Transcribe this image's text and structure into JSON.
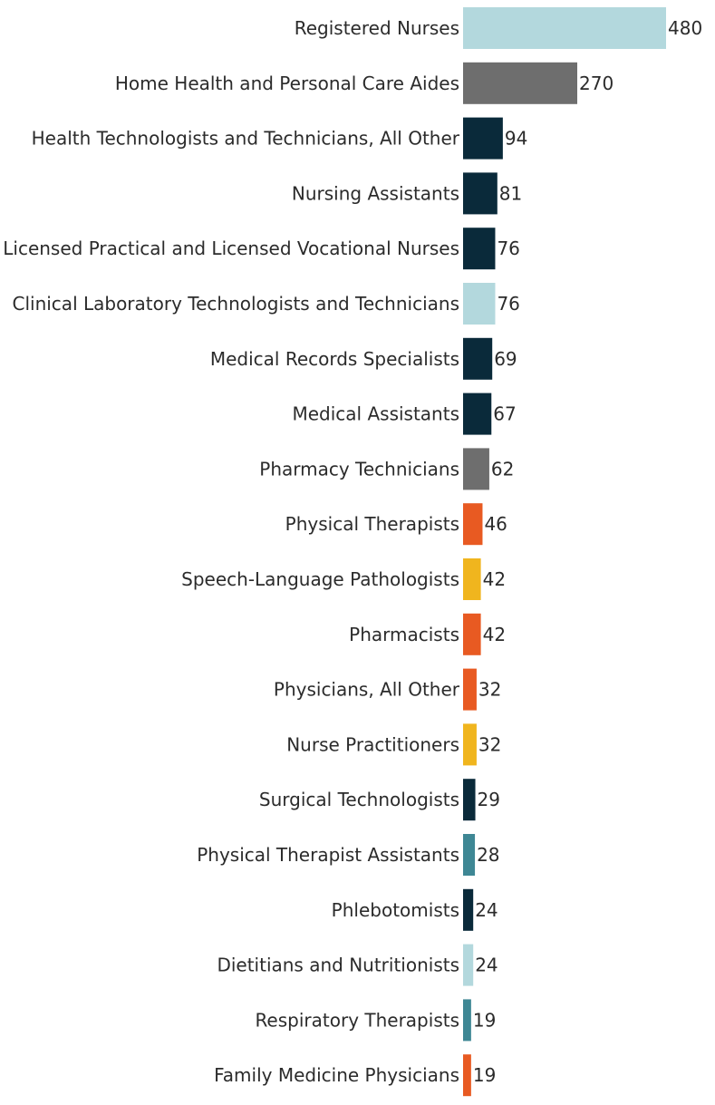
{
  "chart_data": {
    "type": "bar",
    "orientation": "horizontal",
    "title": "",
    "xlabel": "",
    "ylabel": "",
    "xlim": [
      0,
      480
    ],
    "grid": false,
    "categories": [
      "Registered Nurses",
      "Home Health and Personal Care Aides",
      "Health Technologists and Technicians, All Other",
      "Nursing Assistants",
      "Licensed Practical and Licensed Vocational Nurses",
      "Clinical Laboratory Technologists and Technicians",
      "Medical Records Specialists",
      "Medical Assistants",
      "Pharmacy Technicians",
      "Physical Therapists",
      "Speech-Language Pathologists",
      "Pharmacists",
      "Physicians, All Other",
      "Nurse Practitioners",
      "Surgical Technologists",
      "Physical Therapist Assistants",
      "Phlebotomists",
      "Dietitians and Nutritionists",
      "Respiratory Therapists",
      "Family Medicine Physicians"
    ],
    "values": [
      480,
      270,
      94,
      81,
      76,
      76,
      69,
      67,
      62,
      46,
      42,
      42,
      32,
      32,
      29,
      28,
      24,
      24,
      19,
      19
    ],
    "value_labels": [
      "480",
      "270",
      "94",
      "81",
      "76",
      "76",
      "69",
      "67",
      "62",
      "46",
      "42",
      "42",
      "32",
      "32",
      "29",
      "28",
      "24",
      "24",
      "19",
      "19"
    ],
    "colors": [
      "#b3d8dd",
      "#6e6e6e",
      "#0a2a3a",
      "#0a2a3a",
      "#0a2a3a",
      "#b3d8dd",
      "#0a2a3a",
      "#0a2a3a",
      "#6e6e6e",
      "#e85a22",
      "#f0b51e",
      "#e85a22",
      "#e85a22",
      "#f0b51e",
      "#0a2a3a",
      "#3e8794",
      "#0a2a3a",
      "#b3d8dd",
      "#3e8794",
      "#e85a22"
    ]
  }
}
